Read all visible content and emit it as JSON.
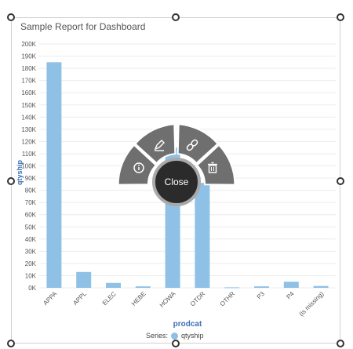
{
  "chart_data": {
    "type": "bar",
    "title": "Sample Report for Dashboard",
    "xlabel": "prodcat",
    "ylabel": "qtyship",
    "categories": [
      "APPA",
      "APPL",
      "ELEC",
      "HEBE",
      "HOWA",
      "OTDR",
      "OTHR",
      "P3",
      "P4",
      "(is missing)"
    ],
    "series": [
      {
        "name": "qtyship",
        "values": [
          185000,
          13000,
          4000,
          1200,
          115000,
          86000,
          400,
          1200,
          5000,
          1500
        ]
      }
    ],
    "yticks": [
      "0K",
      "10K",
      "20K",
      "30K",
      "40K",
      "50K",
      "60K",
      "70K",
      "80K",
      "90K",
      "100K",
      "110K",
      "120K",
      "130K",
      "140K",
      "150K",
      "160K",
      "170K",
      "180K",
      "190K",
      "200K"
    ],
    "ylim": [
      0,
      200000
    ],
    "grid": true,
    "color": "#8fc0e6"
  },
  "legend": {
    "prefix": "Series:",
    "series_name": "qtyship"
  },
  "radial_menu": {
    "close_label": "Close"
  },
  "icons": [
    "info-icon",
    "edit-icon",
    "link-icon",
    "delete-icon"
  ]
}
